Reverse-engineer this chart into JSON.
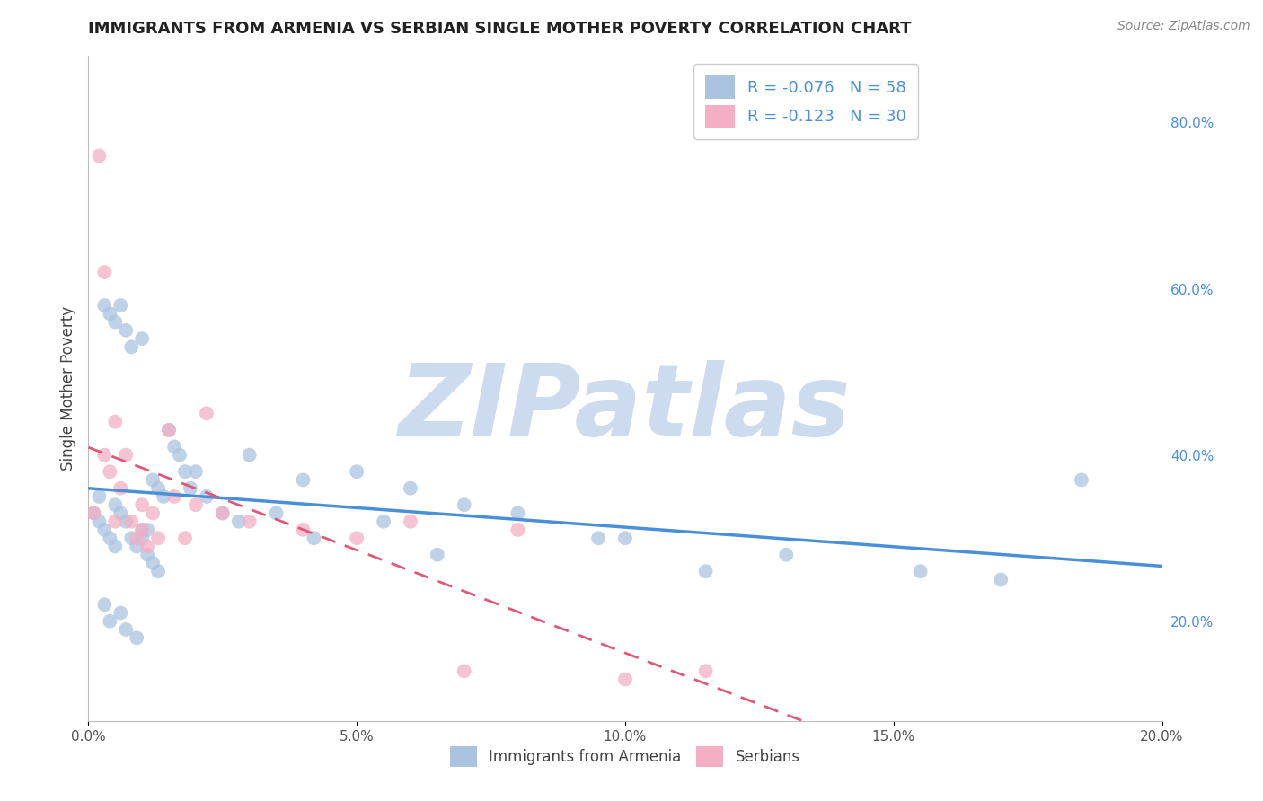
{
  "title": "IMMIGRANTS FROM ARMENIA VS SERBIAN SINGLE MOTHER POVERTY CORRELATION CHART",
  "source": "Source: ZipAtlas.com",
  "ylabel": "Single Mother Poverty",
  "xlim": [
    0.0,
    0.2
  ],
  "ylim": [
    0.08,
    0.88
  ],
  "x_ticks": [
    0.0,
    0.05,
    0.1,
    0.15,
    0.2
  ],
  "x_tick_labels": [
    "0.0%",
    "5.0%",
    "10.0%",
    "15.0%",
    "20.0%"
  ],
  "y_ticks_right": [
    0.2,
    0.4,
    0.6,
    0.8
  ],
  "y_tick_labels_right": [
    "20.0%",
    "40.0%",
    "60.0%",
    "80.0%"
  ],
  "legend_labels": [
    "Immigrants from Armenia",
    "Serbians"
  ],
  "R_armenia": -0.076,
  "N_armenia": 58,
  "R_serbian": -0.123,
  "N_serbian": 30,
  "color_armenia": "#aac4e0",
  "color_serbian": "#f4afc4",
  "line_color_armenia": "#4a90d9",
  "line_color_serbian": "#e05878",
  "watermark": "ZIPatlas",
  "watermark_color": "#ccdcee",
  "background_color": "#ffffff",
  "grid_color": "#d0d8e8",
  "arm_x": [
    0.001,
    0.002,
    0.002,
    0.003,
    0.003,
    0.003,
    0.004,
    0.004,
    0.004,
    0.005,
    0.005,
    0.005,
    0.006,
    0.006,
    0.006,
    0.007,
    0.007,
    0.007,
    0.008,
    0.008,
    0.009,
    0.009,
    0.01,
    0.01,
    0.01,
    0.011,
    0.011,
    0.012,
    0.012,
    0.013,
    0.013,
    0.014,
    0.015,
    0.016,
    0.017,
    0.018,
    0.019,
    0.02,
    0.022,
    0.025,
    0.028,
    0.03,
    0.035,
    0.04,
    0.042,
    0.05,
    0.055,
    0.06,
    0.065,
    0.07,
    0.08,
    0.095,
    0.1,
    0.115,
    0.13,
    0.155,
    0.17,
    0.185
  ],
  "arm_y": [
    0.33,
    0.32,
    0.35,
    0.31,
    0.58,
    0.22,
    0.3,
    0.57,
    0.2,
    0.34,
    0.29,
    0.56,
    0.33,
    0.58,
    0.21,
    0.32,
    0.55,
    0.19,
    0.3,
    0.53,
    0.29,
    0.18,
    0.3,
    0.31,
    0.54,
    0.31,
    0.28,
    0.37,
    0.27,
    0.36,
    0.26,
    0.35,
    0.43,
    0.41,
    0.4,
    0.38,
    0.36,
    0.38,
    0.35,
    0.33,
    0.32,
    0.4,
    0.33,
    0.37,
    0.3,
    0.38,
    0.32,
    0.36,
    0.28,
    0.34,
    0.33,
    0.3,
    0.3,
    0.26,
    0.28,
    0.26,
    0.25,
    0.37
  ],
  "serb_x": [
    0.001,
    0.002,
    0.003,
    0.003,
    0.004,
    0.005,
    0.005,
    0.006,
    0.007,
    0.008,
    0.009,
    0.01,
    0.01,
    0.011,
    0.012,
    0.013,
    0.015,
    0.016,
    0.018,
    0.02,
    0.022,
    0.025,
    0.03,
    0.04,
    0.05,
    0.06,
    0.07,
    0.08,
    0.1,
    0.115
  ],
  "serb_y": [
    0.33,
    0.76,
    0.62,
    0.4,
    0.38,
    0.44,
    0.32,
    0.36,
    0.4,
    0.32,
    0.3,
    0.34,
    0.31,
    0.29,
    0.33,
    0.3,
    0.43,
    0.35,
    0.3,
    0.34,
    0.45,
    0.33,
    0.32,
    0.31,
    0.3,
    0.32,
    0.14,
    0.31,
    0.13,
    0.14
  ]
}
